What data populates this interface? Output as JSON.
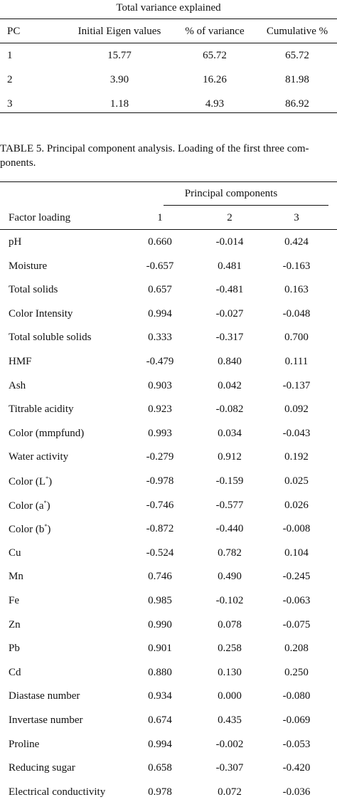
{
  "table4": {
    "title": "Total variance explained",
    "headers": [
      "PC",
      "Initial Eigen values",
      "% of variance",
      "Cumulative %"
    ],
    "rows": [
      [
        "1",
        "15.77",
        "65.72",
        "65.72"
      ],
      [
        "2",
        "3.90",
        "16.26",
        "81.98"
      ],
      [
        "3",
        "1.18",
        "4.93",
        "86.92"
      ]
    ]
  },
  "table5": {
    "caption_line1": "TABLE 5. Principal component analysis. Loading of the first three com-",
    "caption_line2": "ponents.",
    "group_header": "Principal components",
    "headers": [
      "Factor loading",
      "1",
      "2",
      "3"
    ],
    "rows": [
      [
        "pH",
        "0.660",
        "-0.014",
        "0.424"
      ],
      [
        "Moisture",
        "-0.657",
        "0.481",
        "-0.163"
      ],
      [
        "Total solids",
        "0.657",
        "-0.481",
        "0.163"
      ],
      [
        "Color Intensity",
        "0.994",
        "-0.027",
        "-0.048"
      ],
      [
        "Total soluble solids",
        "0.333",
        "-0.317",
        "0.700"
      ],
      [
        "HMF",
        "-0.479",
        "0.840",
        "0.111"
      ],
      [
        "Ash",
        "0.903",
        "0.042",
        "-0.137"
      ],
      [
        "Titrable acidity",
        "0.923",
        "-0.082",
        "0.092"
      ],
      [
        "Color (mmpfund)",
        "0.993",
        "0.034",
        "-0.043"
      ],
      [
        "Water activity",
        "-0.279",
        "0.912",
        "0.192"
      ],
      [
        "Color (L*)",
        "-0.978",
        "-0.159",
        "0.025"
      ],
      [
        "Color (a*)",
        "-0.746",
        "-0.577",
        "0.026"
      ],
      [
        "Color (b*)",
        "-0.872",
        "-0.440",
        "-0.008"
      ],
      [
        "Cu",
        "-0.524",
        "0.782",
        "0.104"
      ],
      [
        "Mn",
        "0.746",
        "0.490",
        "-0.245"
      ],
      [
        "Fe",
        "0.985",
        "-0.102",
        "-0.063"
      ],
      [
        "Zn",
        "0.990",
        "0.078",
        "-0.075"
      ],
      [
        "Pb",
        "0.901",
        "0.258",
        "0.208"
      ],
      [
        "Cd",
        "0.880",
        "0.130",
        "0.250"
      ],
      [
        "Diastase number",
        "0.934",
        "0.000",
        "-0.080"
      ],
      [
        "Invertase number",
        "0.674",
        "0.435",
        "-0.069"
      ],
      [
        "Proline",
        "0.994",
        "-0.002",
        "-0.053"
      ],
      [
        "Reducing sugar",
        "0.658",
        "-0.307",
        "-0.420"
      ],
      [
        "Electrical conductivity",
        "0.978",
        "0.072",
        "-0.036"
      ]
    ]
  }
}
